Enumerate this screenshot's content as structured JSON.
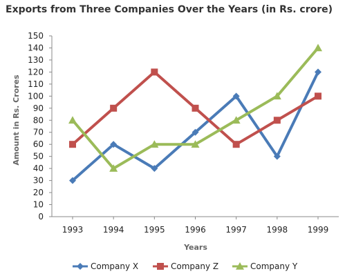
{
  "chart_data": {
    "type": "line",
    "title": "Exports from Three Companies Over the Years (in Rs. crore)",
    "xlabel": "Years",
    "ylabel": "Amount in Rs. Crores",
    "categories": [
      "1993",
      "1994",
      "1995",
      "1996",
      "1997",
      "1998",
      "1999"
    ],
    "ylim": [
      0,
      150
    ],
    "ytick_step": 10,
    "grid": false,
    "legend_position": "bottom",
    "series": [
      {
        "name": "Company X",
        "values": [
          30,
          60,
          40,
          70,
          100,
          50,
          120
        ],
        "color": "#4a7bb7",
        "marker": "diamond"
      },
      {
        "name": "Company Z",
        "values": [
          60,
          90,
          120,
          90,
          60,
          80,
          100
        ],
        "color": "#c0504d",
        "marker": "square"
      },
      {
        "name": "Company Y",
        "values": [
          80,
          40,
          60,
          60,
          80,
          100,
          140
        ],
        "color": "#9bbb59",
        "marker": "triangle"
      }
    ]
  }
}
